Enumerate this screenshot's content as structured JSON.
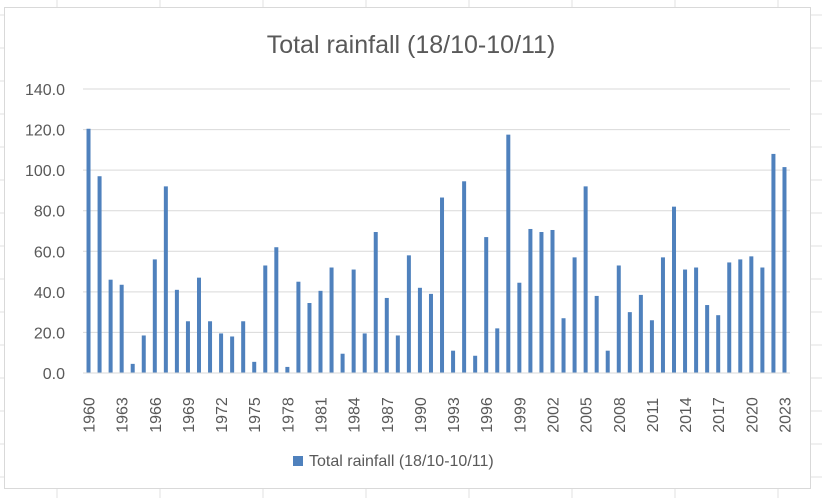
{
  "chart_data": {
    "type": "bar",
    "title": "Total rainfall (18/10-10/11)",
    "xlabel": "",
    "ylabel": "",
    "ylim": [
      0,
      140
    ],
    "yticks": [
      "0.0",
      "20.0",
      "40.0",
      "60.0",
      "80.0",
      "100.0",
      "120.0",
      "140.0"
    ],
    "ytick_values": [
      0,
      20,
      40,
      60,
      80,
      100,
      120,
      140
    ],
    "grid": true,
    "legend_position": "bottom",
    "bar_color": "#4f81bd",
    "categories": [
      "1960",
      "1961",
      "1962",
      "1963",
      "1964",
      "1965",
      "1966",
      "1967",
      "1968",
      "1969",
      "1970",
      "1971",
      "1972",
      "1973",
      "1974",
      "1975",
      "1976",
      "1977",
      "1978",
      "1979",
      "1980",
      "1981",
      "1982",
      "1983",
      "1984",
      "1985",
      "1986",
      "1987",
      "1988",
      "1989",
      "1990",
      "1991",
      "1992",
      "1993",
      "1994",
      "1995",
      "1996",
      "1997",
      "1998",
      "1999",
      "2000",
      "2001",
      "2002",
      "2003",
      "2004",
      "2005",
      "2006",
      "2007",
      "2008",
      "2009",
      "2010",
      "2011",
      "2012",
      "2013",
      "2014",
      "2015",
      "2016",
      "2017",
      "2018",
      "2019",
      "2020",
      "2021",
      "2022",
      "2023"
    ],
    "xtick_labels": [
      "1960",
      "1963",
      "1966",
      "1969",
      "1972",
      "1975",
      "1978",
      "1981",
      "1984",
      "1987",
      "1990",
      "1993",
      "1996",
      "1999",
      "2002",
      "2005",
      "2008",
      "2011",
      "2014",
      "2017",
      "2020",
      "2023"
    ],
    "series": [
      {
        "name": "Total rainfall (18/10-10/11)",
        "values": [
          120.4,
          97,
          46,
          43.5,
          4.5,
          18.5,
          56,
          92,
          41,
          25.5,
          47,
          25.5,
          19.5,
          18,
          25.5,
          5.5,
          53,
          62,
          3,
          45,
          34.5,
          40.5,
          52,
          9.5,
          51,
          19.5,
          69.5,
          37,
          18.5,
          58,
          42,
          39,
          86.5,
          11,
          94.5,
          8.5,
          67,
          22,
          117.5,
          44.5,
          71,
          69.5,
          70.5,
          27,
          57,
          92,
          38,
          11,
          53,
          30,
          38.5,
          26,
          57,
          82,
          51,
          52,
          33.5,
          28.5,
          54.5,
          56,
          57.5,
          52,
          108,
          101.5
        ]
      }
    ]
  }
}
